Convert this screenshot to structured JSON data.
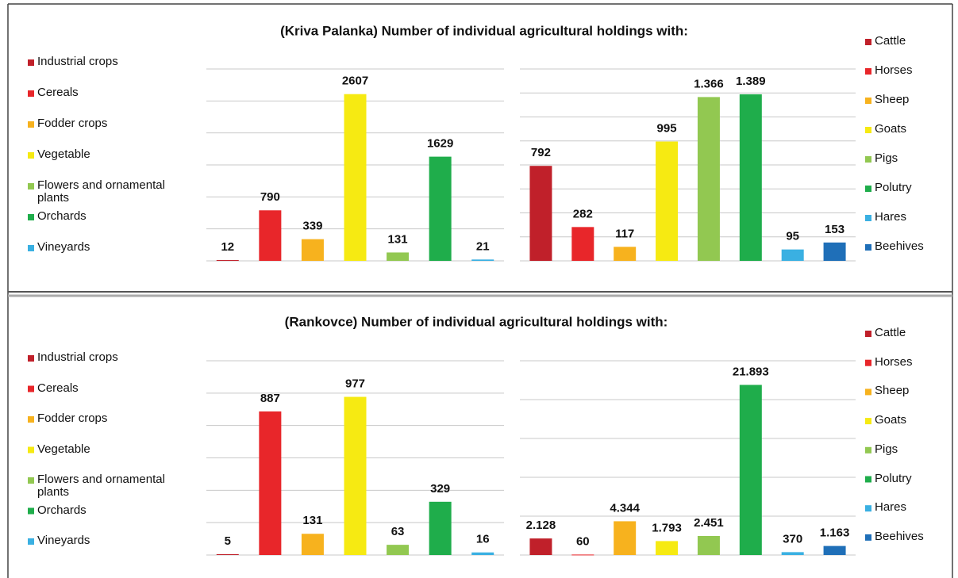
{
  "chart_data": [
    {
      "type": "bar",
      "title": "(Kriva Palanka) Number of individual agricultural holdings with:",
      "categories": [
        "Industrial crops",
        "Cereals",
        "Fodder crops",
        "Vegetable",
        "Flowers and ornamental plants",
        "Orchards",
        "Vineyards"
      ],
      "values": [
        12,
        790,
        339,
        2607,
        131,
        1629,
        21
      ],
      "colors": [
        "#c0202a",
        "#e8262a",
        "#f7b21e",
        "#f6ea12",
        "#92c851",
        "#1fad4b",
        "#3ab0e2"
      ],
      "ylim": [
        0,
        3000
      ],
      "yticks": [
        0,
        500,
        1000,
        1500,
        2000,
        2500,
        3000
      ],
      "grid": true,
      "legend": "left"
    },
    {
      "type": "bar",
      "categories": [
        "Cattle",
        "Horses",
        "Sheep",
        "Goats",
        "Pigs",
        "Polutry",
        "Hares",
        "Beehives"
      ],
      "values": [
        792,
        282,
        117,
        995,
        1366,
        1389,
        95,
        153
      ],
      "value_labels": [
        "792",
        "282",
        "117",
        "995",
        "1.366",
        "1.389",
        "95",
        "153"
      ],
      "colors": [
        "#c0202a",
        "#e8262a",
        "#f7b21e",
        "#f6ea12",
        "#92c851",
        "#1fad4b",
        "#3ab0e2",
        "#1f6fb8"
      ],
      "ylim": [
        0,
        1600
      ],
      "yticks": [
        0,
        200,
        400,
        600,
        800,
        1000,
        1200,
        1400,
        1600
      ],
      "grid": true,
      "legend": "right"
    },
    {
      "type": "bar",
      "title": "(Rankovce) Number of individual agricultural holdings with:",
      "categories": [
        "Industrial crops",
        "Cereals",
        "Fodder crops",
        "Vegetable",
        "Flowers and ornamental plants",
        "Orchards",
        "Vineyards"
      ],
      "values": [
        5,
        887,
        131,
        977,
        63,
        329,
        16
      ],
      "colors": [
        "#c0202a",
        "#e8262a",
        "#f7b21e",
        "#f6ea12",
        "#92c851",
        "#1fad4b",
        "#3ab0e2"
      ],
      "ylim": [
        0,
        1200
      ],
      "yticks": [
        0,
        200,
        400,
        600,
        800,
        1000,
        1200
      ],
      "grid": true,
      "legend": "left"
    },
    {
      "type": "bar",
      "categories": [
        "Cattle",
        "Horses",
        "Sheep",
        "Goats",
        "Pigs",
        "Polutry",
        "Hares",
        "Beehives"
      ],
      "values": [
        2128,
        60,
        4344,
        1793,
        2451,
        21893,
        370,
        1163
      ],
      "value_labels": [
        "2.128",
        "60",
        "4.344",
        "1.793",
        "2.451",
        "21.893",
        "370",
        "1.163"
      ],
      "colors": [
        "#c0202a",
        "#e8262a",
        "#f7b21e",
        "#f6ea12",
        "#92c851",
        "#1fad4b",
        "#3ab0e2",
        "#1f6fb8"
      ],
      "ylim": [
        0,
        25000
      ],
      "yticks": [
        0,
        5000,
        10000,
        15000,
        20000,
        25000
      ],
      "grid": true,
      "legend": "right"
    }
  ]
}
